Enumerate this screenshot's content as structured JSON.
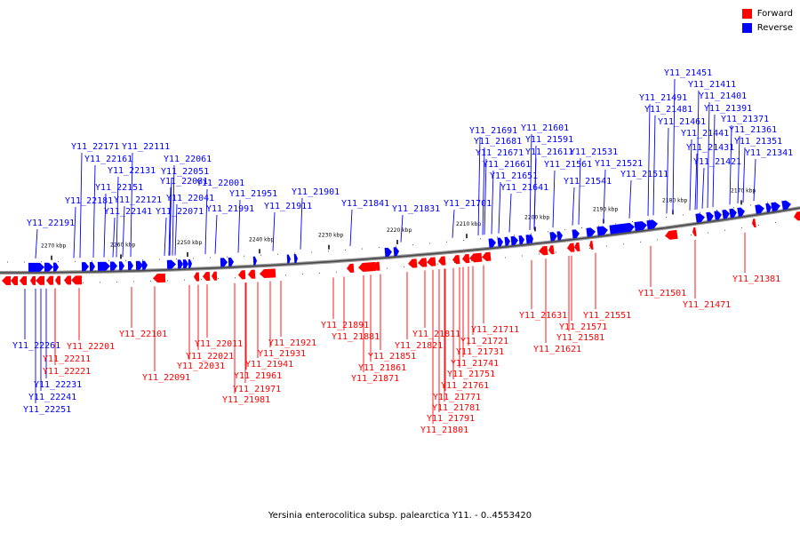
{
  "legend": [
    {
      "label": "Forward",
      "color": "#ff0000"
    },
    {
      "label": "Reverse",
      "color": "#0000ff"
    }
  ],
  "caption": "Yersinia enterocolitica subsp. palearctica Y11. - 0..4553420",
  "ticks": [
    "2270 kbp",
    "2260 kbp",
    "2250 kbp",
    "2240 kbp",
    "2230 kbp",
    "2220 kbp",
    "2210 kbp",
    "2200 kbp",
    "2190 kbp",
    "2180 kbp",
    "2170 kbp"
  ],
  "genes_reverse": [
    "Y11_22191",
    "Y11_22181",
    "Y11_22171",
    "Y11_22161",
    "Y11_22151",
    "Y11_22141",
    "Y11_22131",
    "Y11_22121",
    "Y11_22111",
    "Y11_22081",
    "Y11_22071",
    "Y11_22061",
    "Y11_22051",
    "Y11_22041",
    "Y11_22001",
    "Y11_21991",
    "Y11_21951",
    "Y11_21911",
    "Y11_21901",
    "Y11_21841",
    "Y11_21831",
    "Y11_21701",
    "Y11_21691",
    "Y11_21681",
    "Y11_21671",
    "Y11_21661",
    "Y11_21651",
    "Y11_21641",
    "Y11_21611",
    "Y11_21601",
    "Y11_21591",
    "Y11_21561",
    "Y11_21541",
    "Y11_21531",
    "Y11_21521",
    "Y11_21511",
    "Y11_21491",
    "Y11_21481",
    "Y11_21461",
    "Y11_21451",
    "Y11_21441",
    "Y11_21431",
    "Y11_21421",
    "Y11_21411",
    "Y11_21401",
    "Y11_21391",
    "Y11_21371",
    "Y11_21361",
    "Y11_21351",
    "Y11_21341",
    "Y11_22261",
    "Y11_22241",
    "Y11_22231",
    "Y11_22251"
  ],
  "genes_forward": [
    "Y11_22201",
    "Y11_22211",
    "Y11_22221",
    "Y11_22101",
    "Y11_22091",
    "Y11_22011",
    "Y11_22021",
    "Y11_22031",
    "Y11_21921",
    "Y11_21931",
    "Y11_21941",
    "Y11_21961",
    "Y11_21971",
    "Y11_21981",
    "Y11_21891",
    "Y11_21881",
    "Y11_21851",
    "Y11_21861",
    "Y11_21871",
    "Y11_21811",
    "Y11_21821",
    "Y11_21711",
    "Y11_21721",
    "Y11_21731",
    "Y11_21741",
    "Y11_21751",
    "Y11_21761",
    "Y11_21771",
    "Y11_21781",
    "Y11_21791",
    "Y11_21801",
    "Y11_21631",
    "Y11_21551",
    "Y11_21571",
    "Y11_21581",
    "Y11_21621",
    "Y11_21501",
    "Y11_21471",
    "Y11_21381"
  ]
}
